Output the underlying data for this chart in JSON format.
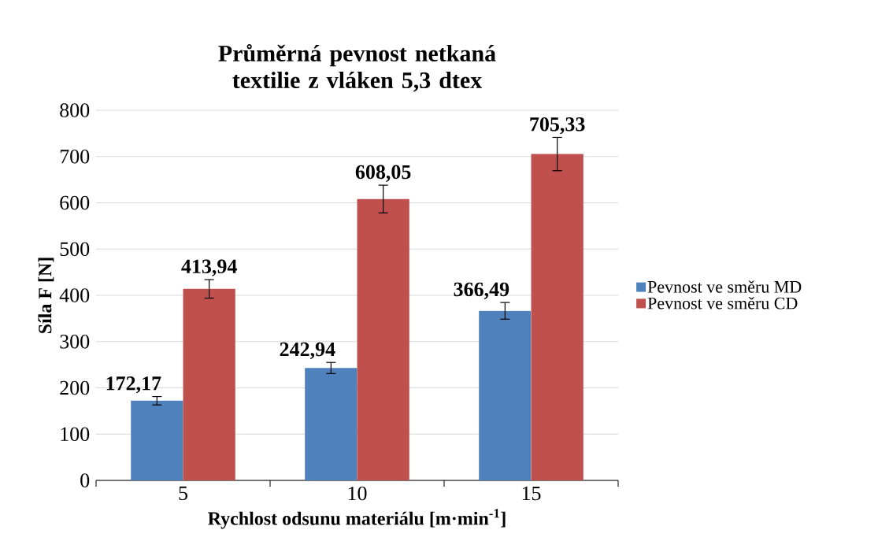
{
  "chart_data": {
    "type": "bar",
    "title": "Průměrná pevnost netkaná textilie z vláken 5,3 dtex",
    "xlabel": "Rychlost odsunu materiálu [m·min$^{-1}$]",
    "ylabel": "Síla F [N]",
    "categories": [
      "5",
      "10",
      "15"
    ],
    "series": [
      {
        "name": "Pevnost ve směru MD",
        "color": "#4f81bd",
        "values": [
          172.17,
          242.94,
          366.49
        ],
        "errors": [
          9,
          12,
          18
        ],
        "value_labels": [
          "172,17",
          "242,94",
          "366,49"
        ]
      },
      {
        "name": "Pevnost ve směru CD",
        "color": "#c0504d",
        "values": [
          413.94,
          608.05,
          705.33
        ],
        "errors": [
          20,
          30,
          36
        ],
        "value_labels": [
          "413,94",
          "608,05",
          "705,33"
        ]
      }
    ],
    "ylim": [
      0,
      800
    ],
    "yticks": [
      0,
      100,
      200,
      300,
      400,
      500,
      600,
      700,
      800
    ],
    "grid": "y",
    "legend": "right"
  }
}
